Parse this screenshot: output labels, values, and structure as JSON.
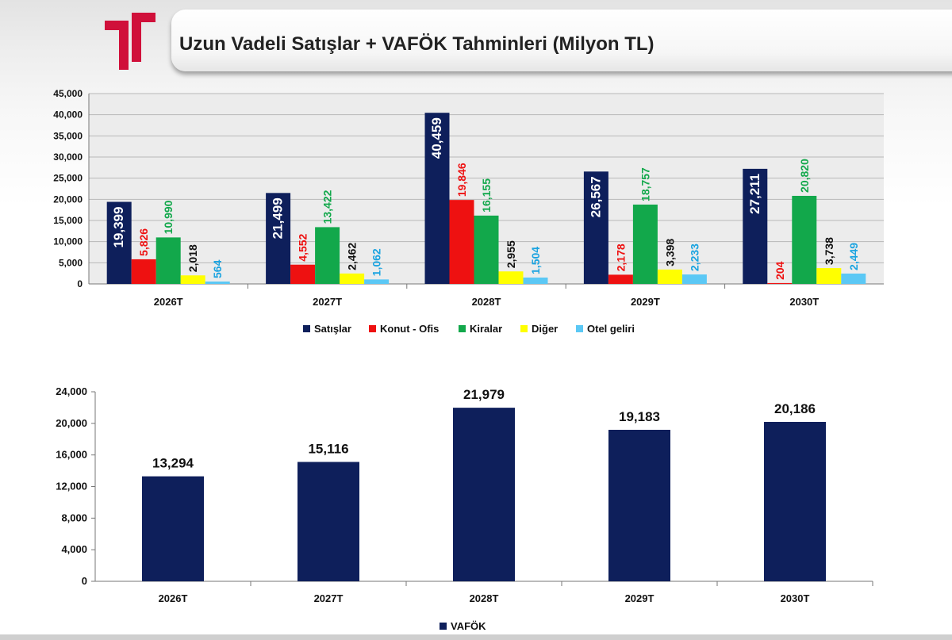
{
  "title": "Uzun Vadeli Satışlar + VAFÖK Tahminleri (Milyon TL)",
  "colors": {
    "navy": "#0e1f5b",
    "red": "#ee1111",
    "green": "#12a84b",
    "yellow": "#ffff00",
    "lightblue": "#5bc8f5",
    "logo": "#d0103a",
    "label_red": "#ee1111",
    "label_green": "#12a84b",
    "label_blue": "#1aa3e0",
    "label_dark": "#111111"
  },
  "chart_data": [
    {
      "type": "bar",
      "categories": [
        "2026T",
        "2027T",
        "2028T",
        "2029T",
        "2030T"
      ],
      "series": [
        {
          "name": "Satışlar",
          "values": [
            19399,
            21499,
            40459,
            26567,
            27211
          ],
          "labels": [
            "19,399",
            "21,499",
            "40,459",
            "26,567",
            "27,211"
          ]
        },
        {
          "name": "Konut - Ofis",
          "values": [
            5826,
            4552,
            19846,
            2178,
            204
          ],
          "labels": [
            "5,826",
            "4,552",
            "19,846",
            "2,178",
            "204"
          ]
        },
        {
          "name": "Kiralar",
          "values": [
            10990,
            13422,
            16155,
            18757,
            20820
          ],
          "labels": [
            "10,990",
            "13,422",
            "16,155",
            "18,757",
            "20,820"
          ]
        },
        {
          "name": "Diğer",
          "values": [
            2018,
            2462,
            2955,
            3398,
            3738
          ],
          "labels": [
            "2,018",
            "2,462",
            "2,955",
            "3,398",
            "3,738"
          ]
        },
        {
          "name": "Otel geliri",
          "values": [
            564,
            1062,
            1504,
            2233,
            2449
          ],
          "labels": [
            "564",
            "1,062",
            "1,504",
            "2,233",
            "2,449"
          ]
        }
      ],
      "ylim": [
        0,
        45000
      ],
      "yticks": [
        "0",
        "5,000",
        "10,000",
        "15,000",
        "20,000",
        "25,000",
        "30,000",
        "35,000",
        "40,000",
        "45,000"
      ],
      "grid": true,
      "legend": "bottom"
    },
    {
      "type": "bar",
      "categories": [
        "2026T",
        "2027T",
        "2028T",
        "2029T",
        "2030T"
      ],
      "series": [
        {
          "name": "VAFÖK",
          "values": [
            13294,
            15116,
            21979,
            19183,
            20186
          ],
          "labels": [
            "13,294",
            "15,116",
            "21,979",
            "19,183",
            "20,186"
          ]
        }
      ],
      "ylim": [
        0,
        24000
      ],
      "yticks": [
        "0",
        "4,000",
        "8,000",
        "12,000",
        "16,000",
        "20,000",
        "24,000"
      ],
      "grid": false,
      "legend": "bottom"
    }
  ]
}
